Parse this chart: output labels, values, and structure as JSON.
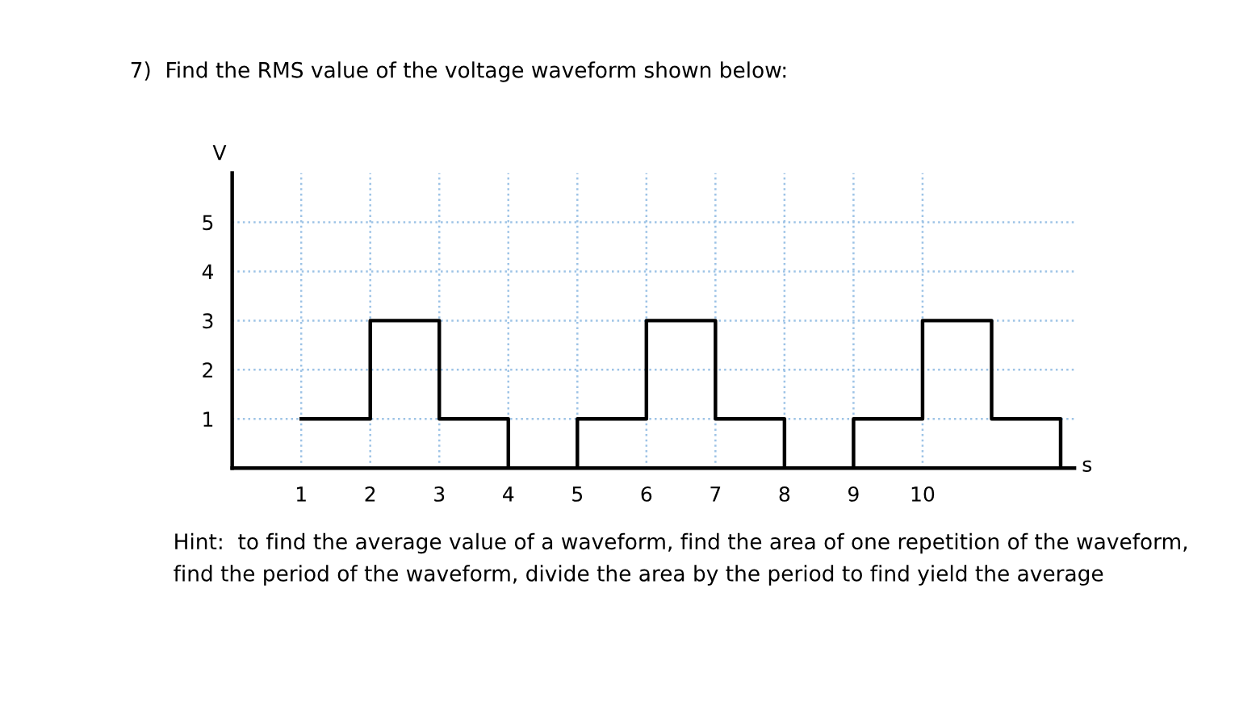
{
  "chart_data": {
    "type": "step",
    "title": "7)  Find the RMS value of the voltage waveform shown below:",
    "xlabel": "s",
    "ylabel": "V",
    "x": [
      1,
      2,
      3,
      4,
      5,
      6,
      7,
      8,
      9,
      10,
      11,
      12
    ],
    "series": [
      {
        "color": "#000000",
        "values": [
          1,
          3,
          1,
          0,
          1,
          3,
          1,
          0,
          1,
          3,
          1,
          0
        ]
      }
    ],
    "xlim": [
      0,
      12.2
    ],
    "ylim": [
      0,
      6
    ],
    "xticks": [
      1,
      2,
      3,
      4,
      5,
      6,
      7,
      8,
      9,
      10
    ],
    "yticks": [
      1,
      2,
      3,
      4,
      5
    ],
    "grid": true,
    "marker": "none",
    "line_style": "solid",
    "annotations": [
      "Hint:  to find the average value of a waveform, find the area of one repetition of the waveform, find the period of the waveform, divide the area by the period to find yield the average"
    ]
  }
}
